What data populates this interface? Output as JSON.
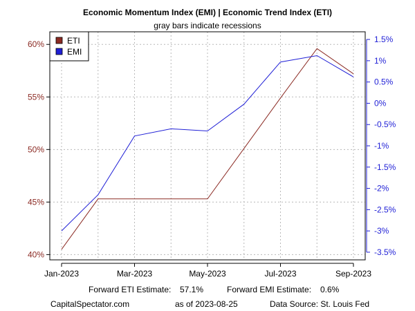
{
  "chart_data": {
    "type": "line",
    "title": "Economic Momentum Index (EMI) | Economic Trend Index (ETI)",
    "subtitle": "gray bars indicate recessions",
    "x": [
      "2023-01",
      "2023-02",
      "2023-03",
      "2023-04",
      "2023-05",
      "2023-06",
      "2023-07",
      "2023-08",
      "2023-09"
    ],
    "x_tick_labels": [
      "Jan-2023",
      "Mar-2023",
      "May-2023",
      "Jul-2023",
      "Sep-2023"
    ],
    "x_tick_indices": [
      0,
      2,
      4,
      6,
      8
    ],
    "left_axis": {
      "ylim": [
        39.5,
        61.2
      ],
      "ticks": [
        40,
        45,
        50,
        55,
        60
      ],
      "tick_labels": [
        "40%",
        "45%",
        "50%",
        "55%",
        "60%"
      ],
      "color": "#8b2a23"
    },
    "right_axis": {
      "ylim": [
        -3.68,
        1.68
      ],
      "ticks": [
        -3.5,
        -3,
        -2.5,
        -2,
        -1.5,
        -1,
        -0.5,
        0,
        0.5,
        1,
        1.5
      ],
      "tick_labels": [
        "-3.5%",
        "-3%",
        "-2.5%",
        "-2%",
        "-1.5%",
        "-1%",
        "-0.5%",
        "0%",
        "0.5%",
        "1%",
        "1.5%"
      ],
      "color": "#1f1fd6"
    },
    "series": [
      {
        "name": "ETI",
        "axis": "left",
        "color": "#8b2a23",
        "values": [
          40.5,
          45.3,
          45.3,
          45.3,
          45.3,
          50.1,
          54.9,
          59.6,
          57.2
        ]
      },
      {
        "name": "EMI",
        "axis": "right",
        "color": "#1f1fd6",
        "values": [
          -3.0,
          -2.15,
          -0.77,
          -0.6,
          -0.65,
          -0.02,
          0.97,
          1.12,
          0.62
        ]
      }
    ],
    "legend": [
      "ETI",
      "EMI"
    ],
    "legend_position": "top-left",
    "grid": true,
    "grid_color": "#b8b8b8"
  },
  "footer": {
    "forward_eti_label": "Forward ETI Estimate:",
    "forward_eti_value": "57.1%",
    "forward_emi_label": "Forward EMI Estimate:",
    "forward_emi_value": "0.6%",
    "source_site": "CapitalSpectator.com",
    "as_of": "as of 2023-08-25",
    "data_source": "Data Source: St. Louis Fed"
  }
}
